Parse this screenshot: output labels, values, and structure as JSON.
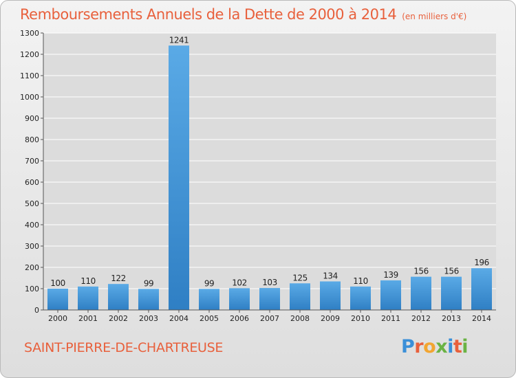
{
  "chart_data": {
    "type": "bar",
    "title": "Remboursements Annuels de la Dette de 2000 à 2014",
    "subtitle": "(en milliers d'€)",
    "categories": [
      "2000",
      "2001",
      "2002",
      "2003",
      "2004",
      "2005",
      "2006",
      "2007",
      "2008",
      "2009",
      "2010",
      "2011",
      "2012",
      "2013",
      "2014"
    ],
    "values": [
      100,
      110,
      122,
      99,
      1241,
      99,
      102,
      103,
      125,
      134,
      110,
      139,
      156,
      156,
      196
    ],
    "ylim": [
      0,
      1300
    ],
    "yticks": [
      0,
      100,
      200,
      300,
      400,
      500,
      600,
      700,
      800,
      900,
      1000,
      1100,
      1200,
      1300
    ],
    "grid": true,
    "data_labels": true,
    "bar_color": "#4a9ede",
    "bar_highlight_color": "#2f7fc4"
  },
  "commune": "SAINT-PIERRE-DE-CHARTREUSE",
  "logo": {
    "text": "Proxiti",
    "letter_colors": [
      "#3a8fd8",
      "#e8603c",
      "#f2a531",
      "#6ab344",
      "#3a8fd8",
      "#e8603c",
      "#6ab344"
    ]
  },
  "colors": {
    "title": "#e8603c",
    "grid": "#ffffff",
    "axis_text": "#222222"
  }
}
